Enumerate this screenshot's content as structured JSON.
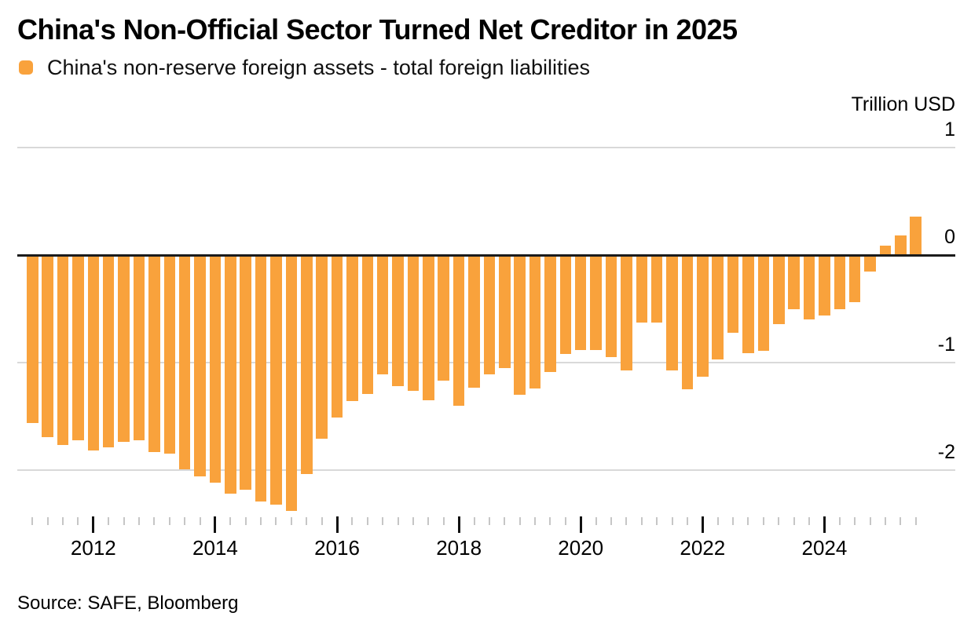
{
  "header": {
    "title": "China's Non-Official Sector Turned Net Creditor in 2025",
    "legend_label": "China's non-reserve foreign assets - total foreign liabilities",
    "unit_label": "Trillion USD"
  },
  "source": "Source: SAFE, Bloomberg",
  "colors": {
    "bar": "#F9A23C",
    "grid": "#D9D9D9",
    "zero_line": "#1B1B1B",
    "tick_minor": "#C6C6C6",
    "tick_major": "#111111",
    "text": "#000000"
  },
  "chart_data": {
    "type": "bar",
    "title": "China's Non-Official Sector Turned Net Creditor in 2025",
    "series_name": "China's non-reserve foreign assets - total foreign liabilities",
    "unit": "Trillion USD",
    "ylabel": "Trillion USD",
    "y_ticks": [
      1,
      0,
      -1,
      -2
    ],
    "ylim": [
      -2.45,
      1.3
    ],
    "grid": "horizontal",
    "legend_position": "top-left",
    "x": [
      "2011 Q1",
      "2011 Q2",
      "2011 Q3",
      "2011 Q4",
      "2012 Q1",
      "2012 Q2",
      "2012 Q3",
      "2012 Q4",
      "2013 Q1",
      "2013 Q2",
      "2013 Q3",
      "2013 Q4",
      "2014 Q1",
      "2014 Q2",
      "2014 Q3",
      "2014 Q4",
      "2015 Q1",
      "2015 Q2",
      "2015 Q3",
      "2015 Q4",
      "2016 Q1",
      "2016 Q2",
      "2016 Q3",
      "2016 Q4",
      "2017 Q1",
      "2017 Q2",
      "2017 Q3",
      "2017 Q4",
      "2018 Q1",
      "2018 Q2",
      "2018 Q3",
      "2018 Q4",
      "2019 Q1",
      "2019 Q2",
      "2019 Q3",
      "2019 Q4",
      "2020 Q1",
      "2020 Q2",
      "2020 Q3",
      "2020 Q4",
      "2021 Q1",
      "2021 Q2",
      "2021 Q3",
      "2021 Q4",
      "2022 Q1",
      "2022 Q2",
      "2022 Q3",
      "2022 Q4",
      "2023 Q1",
      "2023 Q2",
      "2023 Q3",
      "2023 Q4",
      "2024 Q1",
      "2024 Q2",
      "2024 Q3",
      "2024 Q4",
      "2025 Q1",
      "2025 Q2",
      "2025 Q3"
    ],
    "values": [
      -1.56,
      -1.69,
      -1.77,
      -1.72,
      -1.82,
      -1.79,
      -1.74,
      -1.72,
      -1.83,
      -1.85,
      -1.99,
      -2.06,
      -2.12,
      -2.22,
      -2.18,
      -2.29,
      -2.32,
      -2.38,
      -2.04,
      -1.71,
      -1.51,
      -1.36,
      -1.29,
      -1.11,
      -1.22,
      -1.26,
      -1.35,
      -1.17,
      -1.4,
      -1.23,
      -1.11,
      -1.05,
      -1.3,
      -1.24,
      -1.09,
      -0.92,
      -0.88,
      -0.88,
      -0.95,
      -1.07,
      -0.63,
      -0.63,
      -1.07,
      -1.25,
      -1.13,
      -0.97,
      -0.72,
      -0.91,
      -0.89,
      -0.64,
      -0.5,
      -0.6,
      -0.56,
      -0.5,
      -0.44,
      -0.15,
      0.09,
      0.18,
      0.36
    ],
    "year_tick_labels": [
      "2012",
      "2014",
      "2016",
      "2018",
      "2020",
      "2022",
      "2024"
    ],
    "year_tick_indices": [
      4,
      12,
      20,
      28,
      36,
      44,
      52
    ]
  }
}
